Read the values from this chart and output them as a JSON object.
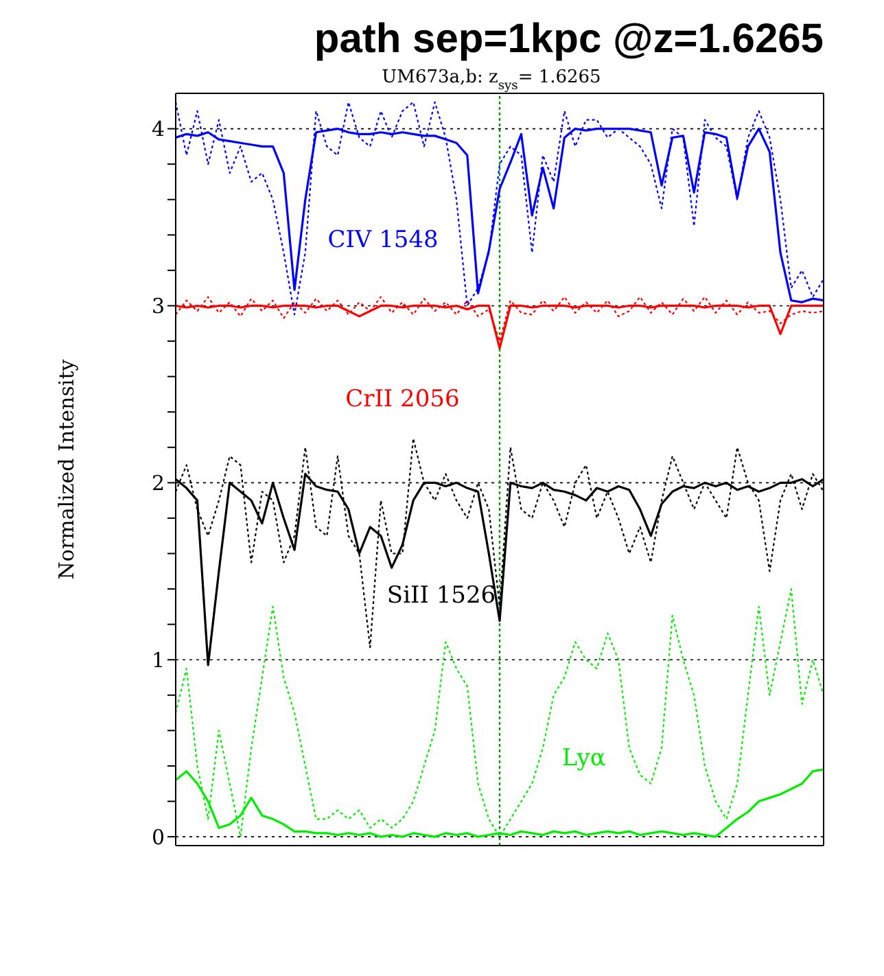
{
  "chart_data": {
    "type": "line",
    "title": "path sep=1kpc @z=1.6265",
    "subtitle": "UM673a,b: z$_{sys}$= 1.6265",
    "ylabel": "Normalized Intensity",
    "categories": [
      null,
      null,
      null,
      null,
      null,
      null,
      null,
      null,
      null,
      null,
      null,
      null,
      null,
      null,
      null,
      null,
      null,
      null,
      null,
      null,
      null,
      null,
      null,
      null,
      null,
      null,
      null,
      null,
      null,
      null,
      null,
      null,
      null,
      null,
      null,
      null,
      null,
      null,
      null,
      null,
      null,
      null,
      null,
      null,
      null,
      null,
      null,
      null,
      null,
      null,
      null,
      null,
      null,
      null,
      null,
      null,
      null,
      null,
      null,
      null,
      null
    ],
    "ylim": [
      -0.05,
      4.2
    ],
    "yticks": [
      0,
      {
        "value": 0.2,
        "label": null
      },
      {
        "value": 0.4,
        "label": null
      },
      {
        "value": 0.6,
        "label": null
      },
      {
        "value": 0.8,
        "label": null
      },
      1,
      {
        "value": 1.2,
        "label": null
      },
      {
        "value": 1.4,
        "label": null
      },
      {
        "value": 1.6,
        "label": null
      },
      {
        "value": 1.8,
        "label": null
      },
      2,
      {
        "value": 2.2,
        "label": null
      },
      {
        "value": 2.4,
        "label": null
      },
      {
        "value": 2.6,
        "label": null
      },
      {
        "value": 2.8,
        "label": null
      },
      3,
      {
        "value": 3.2,
        "label": null
      },
      {
        "value": 3.4,
        "label": null
      },
      {
        "value": 3.6,
        "label": null
      },
      {
        "value": 3.8,
        "label": null
      },
      4
    ],
    "tick_labels": "y",
    "grid": "y",
    "legend": false,
    "marker": "none",
    "ref_lines": [
      {
        "axis": "x",
        "color": "#009900",
        "line_style": "dotted"
      }
    ],
    "series": [
      {
        "name": "CIV 1548",
        "color": "#0000ff",
        "line_style": "solid",
        "values": [
          3.95,
          3.97,
          3.96,
          3.98,
          3.94,
          3.93,
          3.92,
          3.91,
          3.9,
          3.9,
          3.75,
          3.09,
          3.6,
          3.98,
          3.99,
          4.0,
          3.98,
          3.97,
          3.97,
          3.98,
          3.97,
          3.98,
          3.97,
          3.96,
          3.96,
          3.94,
          3.92,
          3.85,
          3.07,
          3.31,
          3.66,
          3.81,
          3.97,
          3.51,
          3.78,
          3.55,
          3.95,
          4.0,
          3.99,
          4.0,
          4.0,
          4.0,
          4.0,
          3.99,
          3.98,
          3.68,
          3.95,
          3.96,
          3.64,
          3.98,
          3.97,
          3.95,
          3.61,
          3.9,
          4.0,
          3.87,
          3.3,
          3.03,
          3.02,
          3.04,
          3.03
        ]
      },
      {
        "color": "#0000ff",
        "line_style": "dotted",
        "values": [
          4.15,
          3.85,
          4.1,
          3.8,
          4.05,
          3.75,
          3.9,
          3.7,
          3.75,
          3.6,
          3.3,
          2.95,
          3.3,
          4.1,
          3.9,
          3.85,
          4.15,
          3.95,
          3.9,
          4.1,
          3.95,
          4.1,
          4.15,
          3.9,
          4.15,
          3.95,
          3.6,
          3.0,
          3.1,
          3.3,
          3.8,
          3.9,
          3.85,
          3.3,
          3.85,
          3.7,
          4.1,
          3.9,
          4.05,
          4.05,
          3.95,
          4.0,
          3.95,
          3.9,
          3.8,
          3.55,
          4.0,
          3.95,
          3.45,
          4.05,
          3.95,
          3.9,
          3.6,
          3.95,
          4.1,
          3.95,
          3.6,
          3.1,
          3.2,
          3.05,
          3.15
        ]
      },
      {
        "name": "CrII 2056",
        "color": "#ff0000",
        "line_style": "solid",
        "values": [
          3.0,
          2.99,
          3.0,
          2.99,
          3.0,
          3.0,
          2.99,
          3.0,
          3.0,
          2.99,
          3.0,
          3.0,
          3.0,
          2.99,
          3.0,
          3.0,
          2.97,
          2.94,
          2.97,
          3.0,
          3.0,
          2.99,
          3.0,
          3.0,
          3.0,
          2.99,
          3.0,
          2.98,
          3.0,
          3.0,
          2.76,
          3.0,
          3.0,
          2.99,
          3.0,
          3.0,
          3.0,
          2.99,
          3.0,
          3.0,
          3.0,
          2.99,
          3.0,
          3.0,
          2.99,
          3.0,
          3.0,
          3.0,
          3.0,
          2.99,
          3.0,
          3.0,
          3.0,
          2.99,
          3.0,
          3.0,
          2.84,
          3.0,
          3.0,
          3.0,
          3.0
        ]
      },
      {
        "color": "#ff0000",
        "line_style": "dotted",
        "values": [
          2.95,
          3.03,
          2.97,
          3.05,
          2.96,
          3.02,
          2.94,
          3.04,
          2.97,
          3.03,
          2.93,
          3.02,
          2.96,
          3.04,
          2.97,
          3.03,
          2.95,
          3.02,
          2.97,
          3.05,
          2.96,
          3.02,
          2.95,
          3.04,
          2.97,
          3.02,
          2.95,
          3.03,
          2.94,
          2.98,
          2.8,
          3.03,
          2.96,
          2.95,
          3.03,
          2.97,
          3.05,
          2.96,
          3.02,
          2.96,
          3.03,
          2.94,
          2.97,
          3.05,
          2.96,
          3.02,
          2.95,
          3.04,
          2.97,
          3.05,
          2.96,
          3.03,
          2.95,
          3.02,
          2.96,
          2.97,
          2.9,
          2.95,
          2.97,
          2.96,
          2.97
        ]
      },
      {
        "name": "SiII 1526",
        "color": "#000000",
        "line_style": "solid",
        "values": [
          2.02,
          1.97,
          1.9,
          0.97,
          1.5,
          2.0,
          1.95,
          1.9,
          1.77,
          2.0,
          1.8,
          1.62,
          2.05,
          1.98,
          1.96,
          1.95,
          1.85,
          1.6,
          1.75,
          1.7,
          1.52,
          1.65,
          1.9,
          2.0,
          2.0,
          1.98,
          2.0,
          1.97,
          1.95,
          1.6,
          1.22,
          2.0,
          1.98,
          1.97,
          2.0,
          1.96,
          1.95,
          1.93,
          1.9,
          1.97,
          1.95,
          1.98,
          1.96,
          1.85,
          1.7,
          1.88,
          1.95,
          1.98,
          1.97,
          2.0,
          1.98,
          2.0,
          1.96,
          1.98,
          1.95,
          1.97,
          2.0,
          2.0,
          2.02,
          1.98,
          2.02
        ]
      },
      {
        "color": "#000000",
        "line_style": "dotted",
        "values": [
          1.95,
          2.1,
          1.85,
          1.7,
          1.9,
          2.15,
          2.1,
          1.55,
          1.95,
          1.9,
          1.55,
          1.7,
          2.2,
          1.75,
          1.7,
          2.15,
          1.7,
          1.6,
          1.07,
          1.9,
          1.6,
          1.6,
          2.25,
          2.0,
          1.9,
          2.05,
          1.9,
          1.8,
          2.0,
          1.85,
          1.3,
          2.2,
          1.85,
          1.8,
          2.0,
          1.9,
          1.75,
          2.0,
          2.1,
          1.8,
          1.95,
          1.8,
          1.6,
          1.75,
          1.55,
          1.9,
          2.15,
          2.0,
          1.85,
          2.0,
          1.9,
          1.8,
          2.2,
          2.0,
          1.9,
          1.5,
          1.9,
          2.05,
          1.85,
          2.05,
          1.95
        ]
      },
      {
        "name": "Lyα",
        "color": "#00ee00",
        "line_style": "solid",
        "values": [
          0.32,
          0.37,
          0.3,
          0.2,
          0.05,
          0.07,
          0.12,
          0.22,
          0.12,
          0.1,
          0.07,
          0.03,
          0.03,
          0.02,
          0.02,
          0.01,
          0.02,
          0.01,
          0.02,
          0.0,
          0.01,
          0.0,
          0.02,
          0.01,
          0.0,
          0.02,
          0.01,
          0.02,
          0.0,
          0.01,
          0.02,
          0.01,
          0.03,
          0.02,
          0.01,
          0.03,
          0.02,
          0.03,
          0.01,
          0.02,
          0.03,
          0.02,
          0.03,
          0.01,
          0.02,
          0.03,
          0.02,
          0.01,
          0.02,
          0.01,
          0.0,
          0.05,
          0.1,
          0.14,
          0.2,
          0.22,
          0.24,
          0.27,
          0.3,
          0.37,
          0.38
        ]
      },
      {
        "color": "#00ee00",
        "line_style": "dotted",
        "values": [
          0.7,
          0.95,
          0.4,
          0.1,
          0.6,
          0.3,
          0.0,
          0.5,
          0.9,
          1.3,
          0.9,
          0.7,
          0.4,
          0.1,
          0.1,
          0.15,
          0.1,
          0.15,
          0.05,
          0.1,
          0.05,
          0.1,
          0.2,
          0.4,
          0.6,
          1.1,
          0.95,
          0.85,
          0.3,
          0.1,
          0.0,
          0.1,
          0.2,
          0.3,
          0.5,
          0.8,
          0.9,
          1.1,
          1.0,
          0.95,
          1.15,
          1.0,
          0.5,
          0.35,
          0.3,
          0.5,
          1.25,
          1.0,
          0.8,
          0.4,
          0.2,
          0.1,
          0.3,
          0.8,
          1.3,
          0.8,
          1.1,
          1.4,
          0.75,
          1.0,
          0.8
        ]
      }
    ]
  }
}
